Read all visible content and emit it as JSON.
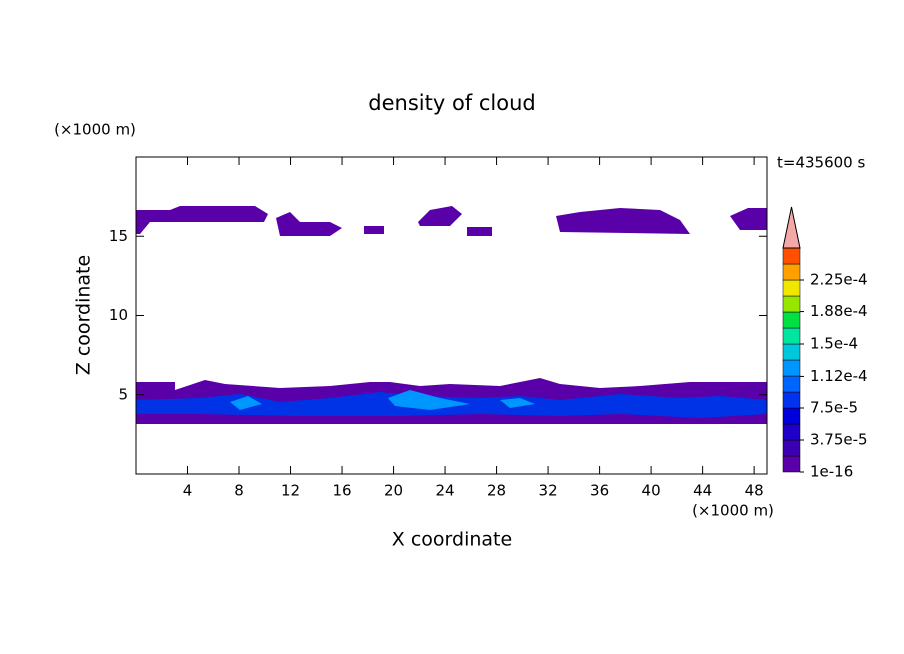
{
  "chart_data": {
    "type": "contour",
    "title": "density of cloud",
    "xlabel": "X coordinate",
    "ylabel": "Z coordinate",
    "xunit": "(×1000 m)",
    "yunit": "(×1000 m)",
    "annotation": "t=435600 s",
    "xlim": [
      0,
      49
    ],
    "ylim": [
      0,
      20
    ],
    "xticks": [
      4,
      8,
      12,
      16,
      20,
      24,
      28,
      32,
      36,
      40,
      44,
      48
    ],
    "yticks": [
      5,
      10,
      15
    ],
    "clim": [
      1e-16,
      0.0002625
    ],
    "cticks": [
      1e-16,
      {
        "value": 3.75e-05,
        "label": "3.75e-5"
      },
      {
        "value": 7.5e-05,
        "label": "7.5e-5"
      },
      {
        "value": 0.000112,
        "label": "1.12e-4"
      },
      {
        "value": 0.00015,
        "label": "1.5e-4"
      },
      {
        "value": 0.000188,
        "label": "1.88e-4"
      },
      {
        "value": 0.000225,
        "label": "2.25e-4"
      }
    ],
    "colors": [
      "#5a00a8",
      "#3c00b4",
      "#1e00c8",
      "#0000dc",
      "#0032f0",
      "#0064ff",
      "#0096ff",
      "#00c8dc",
      "#00e6a0",
      "#00e040",
      "#96e600",
      "#f0e600",
      "#ffa000",
      "#ff5000"
    ],
    "extend_color": "#f4a8a8"
  }
}
